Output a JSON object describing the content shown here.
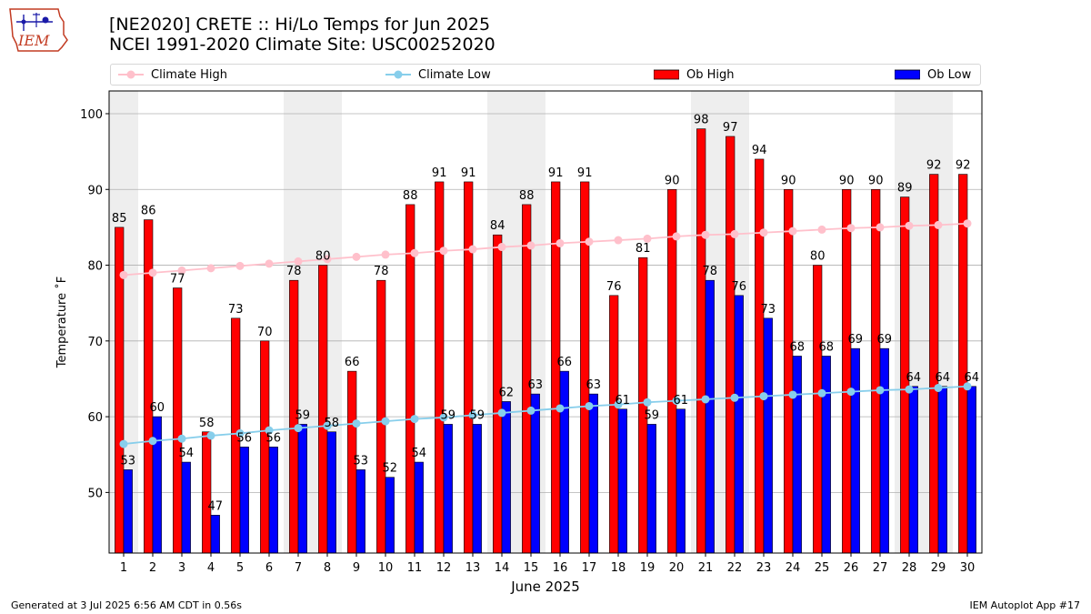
{
  "header": {
    "title_line1": "[NE2020] CRETE :: Hi/Lo Temps for Jun 2025",
    "title_line2": "NCEI 1991-2020 Climate Site: USC00252020",
    "logo_text": "IEM"
  },
  "footer": {
    "generated": "Generated at 3 Jul 2025 6:56 AM CDT in 0.56s",
    "app": "IEM Autoplot App #17"
  },
  "colors": {
    "ob_high": "#ff0000",
    "ob_low": "#0000ff",
    "climate_high": "#ffc0cb",
    "climate_low": "#87ceeb",
    "weekend_shade": "#eeeeee"
  },
  "chart_data": {
    "type": "bar",
    "xlabel": "June 2025",
    "ylabel": "Temperature ˚F",
    "ylim": [
      42,
      103
    ],
    "yticks": [
      50,
      60,
      70,
      80,
      90,
      100
    ],
    "grid": true,
    "legend_position": "top",
    "categories": [
      1,
      2,
      3,
      4,
      5,
      6,
      7,
      8,
      9,
      10,
      11,
      12,
      13,
      14,
      15,
      16,
      17,
      18,
      19,
      20,
      21,
      22,
      23,
      24,
      25,
      26,
      27,
      28,
      29,
      30
    ],
    "shaded_days": [
      1,
      7,
      8,
      14,
      15,
      21,
      22,
      28,
      29
    ],
    "series": [
      {
        "name": "Ob High",
        "kind": "bar",
        "values": [
          85,
          86,
          77,
          58,
          73,
          70,
          78,
          80,
          66,
          78,
          88,
          91,
          91,
          84,
          88,
          91,
          91,
          76,
          81,
          90,
          98,
          97,
          94,
          90,
          80,
          90,
          90,
          89,
          92,
          92
        ]
      },
      {
        "name": "Ob Low",
        "kind": "bar",
        "values": [
          53,
          60,
          54,
          47,
          56,
          56,
          59,
          58,
          53,
          52,
          54,
          59,
          59,
          62,
          63,
          66,
          63,
          61,
          59,
          61,
          78,
          76,
          73,
          68,
          68,
          69,
          69,
          64,
          64,
          64
        ]
      },
      {
        "name": "Climate High",
        "kind": "line",
        "values": [
          78.7,
          79.0,
          79.3,
          79.6,
          79.9,
          80.2,
          80.5,
          80.8,
          81.1,
          81.4,
          81.6,
          81.9,
          82.1,
          82.4,
          82.6,
          82.9,
          83.1,
          83.3,
          83.5,
          83.8,
          84.0,
          84.1,
          84.3,
          84.5,
          84.7,
          84.9,
          85.0,
          85.2,
          85.3,
          85.5
        ]
      },
      {
        "name": "Climate Low",
        "kind": "line",
        "values": [
          56.4,
          56.8,
          57.1,
          57.5,
          57.8,
          58.2,
          58.5,
          58.8,
          59.1,
          59.4,
          59.7,
          59.9,
          60.2,
          60.5,
          60.8,
          61.1,
          61.4,
          61.6,
          61.9,
          62.1,
          62.3,
          62.5,
          62.7,
          62.9,
          63.1,
          63.3,
          63.5,
          63.6,
          63.8,
          64.0
        ]
      }
    ]
  }
}
